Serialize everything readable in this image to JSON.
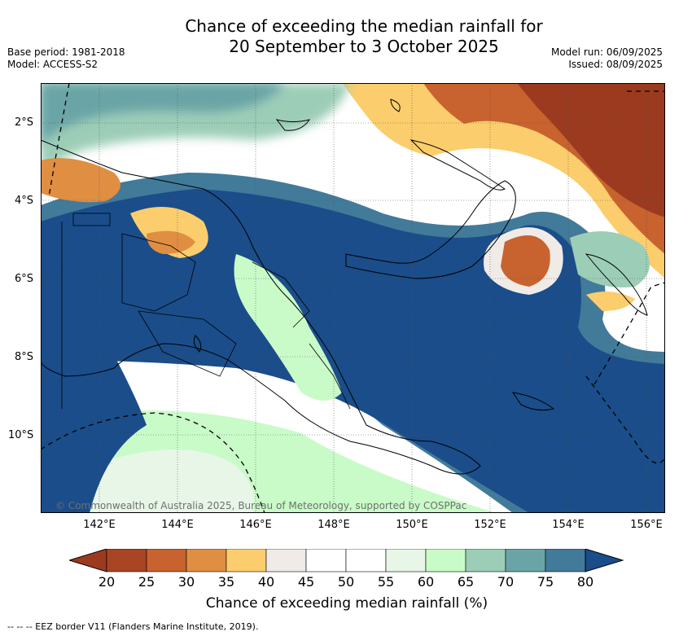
{
  "title": {
    "line1": "Chance of exceeding the median rainfall for",
    "line2": "20 September to 3 October 2025"
  },
  "meta_left": {
    "base_period": "Base period: 1981-2018",
    "model": "Model: ACCESS-S2"
  },
  "meta_right": {
    "model_run": "Model run: 06/09/2025",
    "issued": "Issued: 08/09/2025"
  },
  "map": {
    "region": "Papua New Guinea",
    "lat_labels": [
      "2°S",
      "4°S",
      "6°S",
      "8°S",
      "10°S"
    ],
    "lon_labels": [
      "142°E",
      "144°E",
      "146°E",
      "148°E",
      "150°E",
      "152°E",
      "154°E",
      "156°E"
    ],
    "copyright": "© Commonwealth of Australia 2025, Bureau of Meteorology, supported by COSPPac",
    "colors": {
      "ocean_wet": "#1a4d8a",
      "dry_dark": "#9b3a1f",
      "dry_mid": "#c8622e",
      "dry_light": "#f7c867",
      "neutral": "#f0ebe6",
      "wet_light": "#c9fbc8",
      "wet_mid": "#9ccdb7",
      "wet_deep": "#6aa4a6"
    }
  },
  "colorbar": {
    "ticks": [
      "20",
      "25",
      "30",
      "35",
      "40",
      "45",
      "50",
      "55",
      "60",
      "65",
      "70",
      "75",
      "80"
    ],
    "colors": [
      "#a94524",
      "#c8622e",
      "#e08e42",
      "#fbcd6c",
      "#f0ebe6",
      "#ffffff",
      "#ffffff",
      "#e8f6e8",
      "#c9fbc8",
      "#9ccdb7",
      "#6aa4a6",
      "#427a9a"
    ],
    "under_color": "#9b3a1f",
    "over_color": "#1a4d8a",
    "title": "Chance of exceeding median rainfall (%)"
  },
  "eez_note": "-- -- -- EEZ border V11 (Flanders Marine Institute, 2019)."
}
